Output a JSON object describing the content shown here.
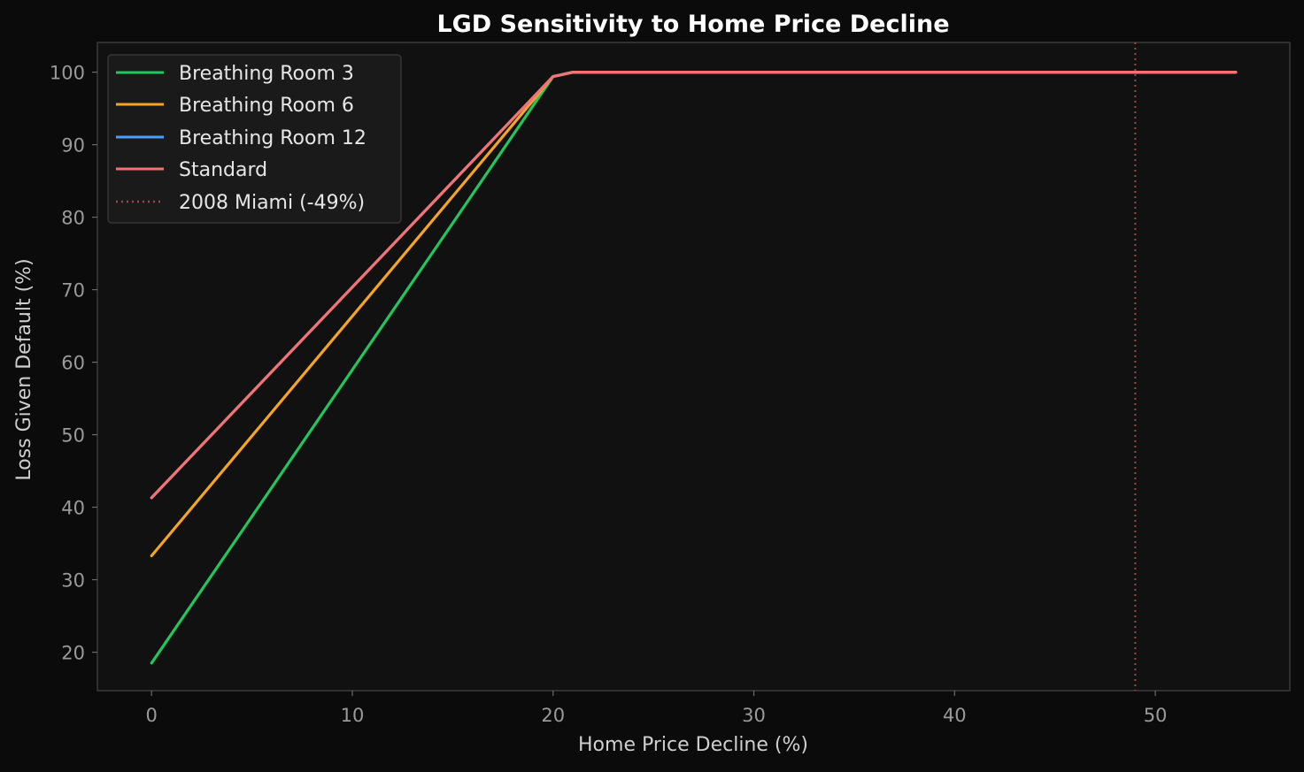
{
  "chart_data": {
    "type": "line",
    "title": "LGD Sensitivity to Home Price Decline",
    "xlabel": "Home Price Decline (%)",
    "ylabel": "Loss Given Default (%)",
    "xlim": [
      -2.7,
      56.7
    ],
    "ylim": [
      14.7,
      104.1
    ],
    "xticks": [
      0,
      10,
      20,
      30,
      40,
      50
    ],
    "yticks": [
      20,
      30,
      40,
      50,
      60,
      70,
      80,
      90,
      100
    ],
    "grid": false,
    "legend_position": "upper-left",
    "series": [
      {
        "name": "Breathing Room 3",
        "color": "#22c55e",
        "style": "solid",
        "x": [
          0,
          20,
          21,
          54
        ],
        "y": [
          18.5,
          99.4,
          100,
          100
        ]
      },
      {
        "name": "Breathing Room 6",
        "color": "#f5a524",
        "style": "solid",
        "x": [
          0,
          20,
          21,
          54
        ],
        "y": [
          33.3,
          99.4,
          100,
          100
        ]
      },
      {
        "name": "Breathing Room 12",
        "color": "#4a9eff",
        "style": "solid",
        "x": [
          0,
          20,
          21,
          54
        ],
        "y": [
          41.3,
          99.4,
          100,
          100
        ]
      },
      {
        "name": "Standard",
        "color": "#f47272",
        "style": "solid",
        "x": [
          0,
          20,
          21,
          54
        ],
        "y": [
          41.3,
          99.4,
          100,
          100
        ]
      }
    ],
    "reference_lines": [
      {
        "name": "2008 Miami (-49%)",
        "orientation": "vertical",
        "x": 49,
        "color": "#9b4848",
        "style": "dotted"
      }
    ]
  }
}
